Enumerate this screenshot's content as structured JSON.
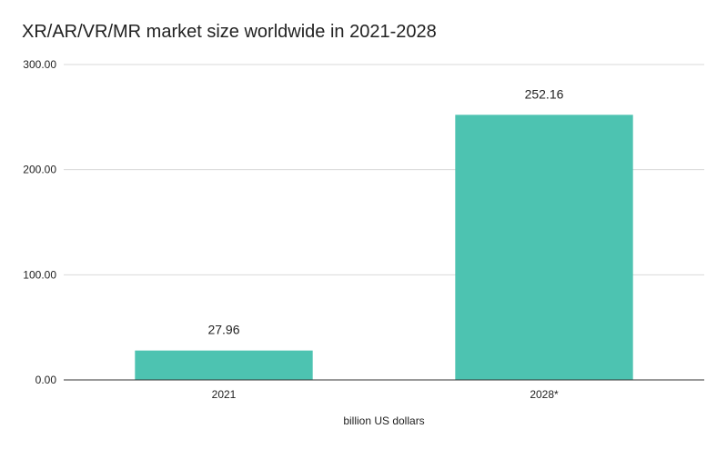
{
  "chart_data": {
    "type": "bar",
    "title": "XR/AR/VR/MR market size worldwide in 2021-2028",
    "xlabel": "billion US dollars",
    "ylabel": "",
    "categories": [
      "2021",
      "2028*"
    ],
    "values": [
      27.96,
      252.16
    ],
    "value_labels": [
      "27.96",
      "252.16"
    ],
    "ylim": [
      0,
      300
    ],
    "yticks": [
      0,
      100,
      200,
      300
    ],
    "ytick_labels": [
      "0.00",
      "100.00",
      "200.00",
      "300.00"
    ],
    "grid": true,
    "legend": "none",
    "bar_color": "#4dc3b1",
    "grid_color": "#d9d9d9",
    "axis_color": "#333333",
    "text_color": "#222222"
  }
}
